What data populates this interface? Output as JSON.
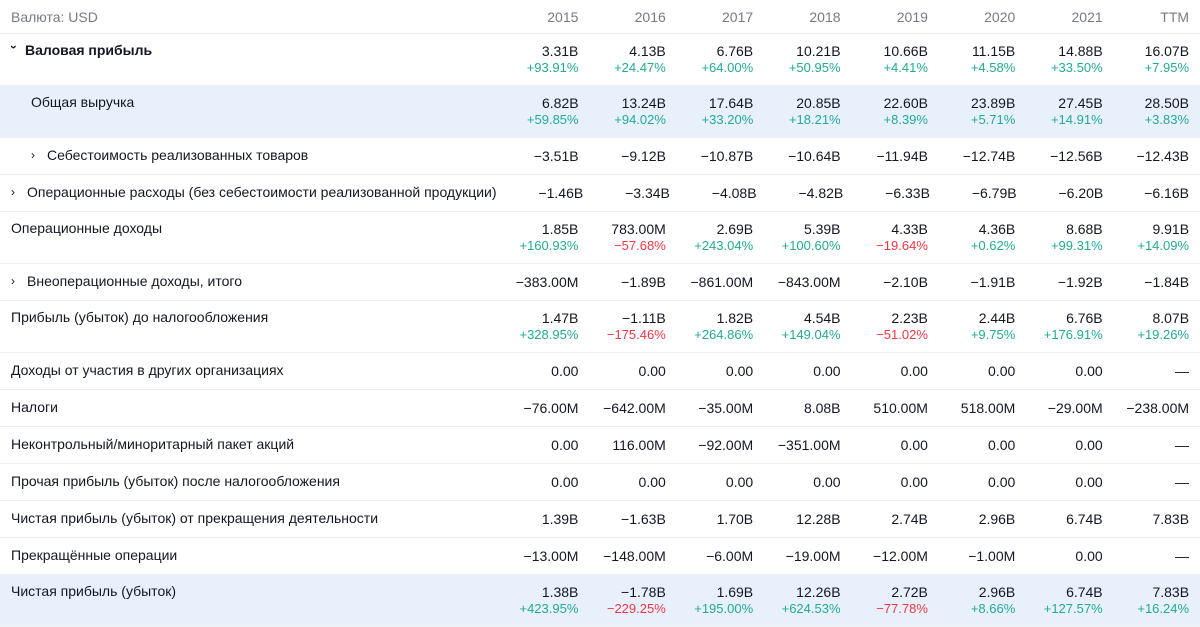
{
  "currency_label": "Валюта: USD",
  "years": [
    "2015",
    "2016",
    "2017",
    "2018",
    "2019",
    "2020",
    "2021",
    "TTM"
  ],
  "rows": [
    {
      "label": "Валовая прибыль",
      "bold": true,
      "chevron": "down",
      "highlight": false,
      "values": [
        "3.31B",
        "4.13B",
        "6.76B",
        "10.21B",
        "10.66B",
        "11.15B",
        "14.88B",
        "16.07B"
      ],
      "changes": [
        "+93.91%",
        "+24.47%",
        "+64.00%",
        "+50.95%",
        "+4.41%",
        "+4.58%",
        "+33.50%",
        "+7.95%"
      ]
    },
    {
      "label": "Общая выручка",
      "indent": true,
      "highlight": true,
      "values": [
        "6.82B",
        "13.24B",
        "17.64B",
        "20.85B",
        "22.60B",
        "23.89B",
        "27.45B",
        "28.50B"
      ],
      "changes": [
        "+59.85%",
        "+94.02%",
        "+33.20%",
        "+18.21%",
        "+8.39%",
        "+5.71%",
        "+14.91%",
        "+3.83%"
      ]
    },
    {
      "label": "Себестоимость реализованных товаров",
      "indent": true,
      "chevron": "right",
      "values": [
        "−3.51B",
        "−9.12B",
        "−10.87B",
        "−10.64B",
        "−11.94B",
        "−12.74B",
        "−12.56B",
        "−12.43B"
      ]
    },
    {
      "label": "Операционные расходы (без себестоимости реализованной продукции)",
      "chevron": "right",
      "values": [
        "−1.46B",
        "−3.34B",
        "−4.08B",
        "−4.82B",
        "−6.33B",
        "−6.79B",
        "−6.20B",
        "−6.16B"
      ]
    },
    {
      "label": "Операционные доходы",
      "values": [
        "1.85B",
        "783.00M",
        "2.69B",
        "5.39B",
        "4.33B",
        "4.36B",
        "8.68B",
        "9.91B"
      ],
      "changes": [
        "+160.93%",
        "−57.68%",
        "+243.04%",
        "+100.60%",
        "−19.64%",
        "+0.62%",
        "+99.31%",
        "+14.09%"
      ]
    },
    {
      "label": "Внеоперационные доходы, итого",
      "chevron": "right",
      "values": [
        "−383.00M",
        "−1.89B",
        "−861.00M",
        "−843.00M",
        "−2.10B",
        "−1.91B",
        "−1.92B",
        "−1.84B"
      ]
    },
    {
      "label": "Прибыль (убыток) до налогообложения",
      "values": [
        "1.47B",
        "−1.11B",
        "1.82B",
        "4.54B",
        "2.23B",
        "2.44B",
        "6.76B",
        "8.07B"
      ],
      "changes": [
        "+328.95%",
        "−175.46%",
        "+264.86%",
        "+149.04%",
        "−51.02%",
        "+9.75%",
        "+176.91%",
        "+19.26%"
      ]
    },
    {
      "label": "Доходы от участия в других организациях",
      "values": [
        "0.00",
        "0.00",
        "0.00",
        "0.00",
        "0.00",
        "0.00",
        "0.00",
        "—"
      ]
    },
    {
      "label": "Налоги",
      "values": [
        "−76.00M",
        "−642.00M",
        "−35.00M",
        "8.08B",
        "510.00M",
        "518.00M",
        "−29.00M",
        "−238.00M"
      ]
    },
    {
      "label": "Неконтрольный/миноритарный пакет акций",
      "values": [
        "0.00",
        "116.00M",
        "−92.00M",
        "−351.00M",
        "0.00",
        "0.00",
        "0.00",
        "—"
      ]
    },
    {
      "label": "Прочая прибыль (убыток) после налогообложения",
      "values": [
        "0.00",
        "0.00",
        "0.00",
        "0.00",
        "0.00",
        "0.00",
        "0.00",
        "—"
      ]
    },
    {
      "label": "Чистая прибыль (убыток) от прекращения деятельности",
      "values": [
        "1.39B",
        "−1.63B",
        "1.70B",
        "12.28B",
        "2.74B",
        "2.96B",
        "6.74B",
        "7.83B"
      ]
    },
    {
      "label": "Прекращённые операции",
      "values": [
        "−13.00M",
        "−148.00M",
        "−6.00M",
        "−19.00M",
        "−12.00M",
        "−1.00M",
        "0.00",
        "—"
      ]
    },
    {
      "label": "Чистая прибыль (убыток)",
      "highlight": true,
      "values": [
        "1.38B",
        "−1.78B",
        "1.69B",
        "12.26B",
        "2.72B",
        "2.96B",
        "6.74B",
        "7.83B"
      ],
      "changes": [
        "+423.95%",
        "−229.25%",
        "+195.00%",
        "+624.53%",
        "−77.78%",
        "+8.66%",
        "+127.57%",
        "+16.24%"
      ]
    }
  ],
  "colors": {
    "positive": "#22ab94",
    "negative": "#f23645",
    "highlight": "#e8f0fc",
    "muted": "#787b86"
  }
}
